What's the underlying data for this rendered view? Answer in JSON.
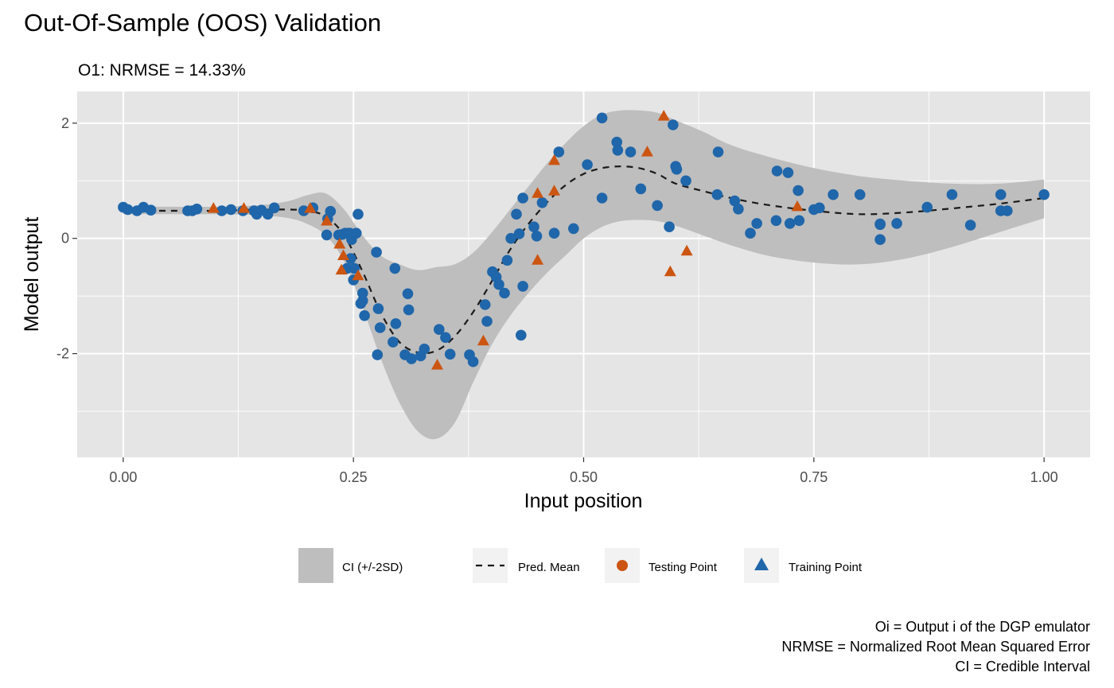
{
  "chart_data": {
    "type": "scatter",
    "title": "Out-Of-Sample (OOS) Validation",
    "subtitle": "O1: NRMSE = 14.33%",
    "xlabel": "Input position",
    "ylabel": "Model output",
    "xlim": [
      -0.05,
      1.05
    ],
    "ylim": [
      -3.8,
      2.55
    ],
    "x_ticks": [
      0,
      0.25,
      0.5,
      0.75,
      1
    ],
    "x_tick_labels": [
      "0.00",
      "0.25",
      "0.50",
      "0.75",
      "1.00"
    ],
    "y_ticks": [
      -2,
      0,
      2
    ],
    "y_tick_labels": [
      "-2",
      "0",
      "2"
    ],
    "grid": true,
    "legend_position": "bottom",
    "legend": {
      "ci": "CI (+/-2SD)",
      "mean": "Pred. Mean",
      "testing": "Testing Point",
      "training": "Training Point"
    },
    "caption": [
      "Oi = Output i of the DGP emulator",
      "NRMSE = Normalized Root Mean Squared Error",
      "CI = Credible Interval"
    ],
    "colors": {
      "panel": "#e5e5e5",
      "grid": "#ffffff",
      "ci_band": "#bebebe",
      "mean_line": "#1a1a1a",
      "testing": "#1f66aa",
      "training": "#cc5511",
      "legend_testing": "#cc5511",
      "legend_training": "#1f66aa",
      "legend_key_bg": "#f2f2f2"
    },
    "ci_band": {
      "x": [
        0,
        0.05,
        0.1,
        0.15,
        0.18,
        0.2,
        0.22,
        0.24,
        0.26,
        0.28,
        0.3,
        0.32,
        0.34,
        0.36,
        0.38,
        0.4,
        0.42,
        0.44,
        0.46,
        0.48,
        0.5,
        0.52,
        0.54,
        0.56,
        0.58,
        0.6,
        0.63,
        0.66,
        0.7,
        0.75,
        0.8,
        0.85,
        0.9,
        0.95,
        1
      ],
      "upper": [
        0.55,
        0.55,
        0.55,
        0.58,
        0.65,
        0.75,
        0.78,
        0.5,
        0.05,
        -0.3,
        -0.45,
        -0.55,
        -0.5,
        -0.45,
        -0.25,
        0.1,
        0.5,
        0.9,
        1.3,
        1.65,
        1.95,
        2.15,
        2.22,
        2.22,
        2.18,
        2.05,
        1.85,
        1.62,
        1.42,
        1.22,
        1.08,
        1.0,
        0.95,
        0.95,
        1.02
      ],
      "lower": [
        0.42,
        0.42,
        0.42,
        0.4,
        0.35,
        0.25,
        0.05,
        -0.4,
        -1.2,
        -2.1,
        -2.85,
        -3.35,
        -3.48,
        -3.2,
        -2.5,
        -1.85,
        -1.35,
        -0.95,
        -0.6,
        -0.3,
        0.0,
        0.2,
        0.3,
        0.32,
        0.3,
        0.22,
        0.05,
        -0.12,
        -0.3,
        -0.42,
        -0.45,
        -0.35,
        -0.15,
        0.1,
        0.35
      ]
    },
    "pred_mean": {
      "x": [
        0,
        0.05,
        0.1,
        0.15,
        0.18,
        0.2,
        0.22,
        0.24,
        0.26,
        0.28,
        0.3,
        0.32,
        0.34,
        0.36,
        0.38,
        0.4,
        0.42,
        0.44,
        0.46,
        0.48,
        0.5,
        0.52,
        0.54,
        0.56,
        0.58,
        0.6,
        0.63,
        0.66,
        0.7,
        0.75,
        0.8,
        0.85,
        0.9,
        0.95,
        1
      ],
      "y": [
        0.48,
        0.48,
        0.48,
        0.5,
        0.5,
        0.48,
        0.38,
        0.05,
        -0.58,
        -1.3,
        -1.8,
        -1.98,
        -1.95,
        -1.7,
        -1.28,
        -0.75,
        -0.2,
        0.25,
        0.62,
        0.92,
        1.12,
        1.22,
        1.25,
        1.22,
        1.12,
        0.95,
        0.82,
        0.7,
        0.58,
        0.48,
        0.42,
        0.45,
        0.52,
        0.6,
        0.7
      ]
    },
    "testing_points": {
      "x": [
        0,
        0.005,
        0.015,
        0.022,
        0.03,
        0.07,
        0.075,
        0.08,
        0.107,
        0.117,
        0.13,
        0.142,
        0.145,
        0.15,
        0.157,
        0.164,
        0.196,
        0.206,
        0.221,
        0.222,
        0.225,
        0.234,
        0.238,
        0.241,
        0.243,
        0.245,
        0.246,
        0.247,
        0.248,
        0.25,
        0.251,
        0.253,
        0.255,
        0.258,
        0.26,
        0.26,
        0.262,
        0.275,
        0.276,
        0.277,
        0.279,
        0.295,
        0.296,
        0.293,
        0.306,
        0.309,
        0.31,
        0.313,
        0.323,
        0.327,
        0.343,
        0.35,
        0.355,
        0.376,
        0.38,
        0.393,
        0.395,
        0.401,
        0.405,
        0.408,
        0.414,
        0.417,
        0.421,
        0.427,
        0.43,
        0.432,
        0.434,
        0.434,
        0.446,
        0.449,
        0.455,
        0.468,
        0.473,
        0.489,
        0.504,
        0.52,
        0.52,
        0.536,
        0.537,
        0.551,
        0.562,
        0.58,
        0.593,
        0.597,
        0.6,
        0.601,
        0.611,
        0.646,
        0.645,
        0.664,
        0.668,
        0.681,
        0.688,
        0.71,
        0.709,
        0.722,
        0.724,
        0.734,
        0.733,
        0.75,
        0.756,
        0.771,
        0.8,
        0.822,
        0.822,
        0.822,
        0.84,
        0.873,
        0.9,
        0.92,
        0.953,
        0.953,
        0.96,
        1.0
      ],
      "y": [
        0.54,
        0.5,
        0.48,
        0.54,
        0.49,
        0.48,
        0.48,
        0.51,
        0.48,
        0.5,
        0.48,
        0.48,
        0.42,
        0.49,
        0.42,
        0.53,
        0.48,
        0.53,
        0.06,
        0.34,
        0.47,
        0.06,
        0.07,
        0.09,
        -0.52,
        0.09,
        0.09,
        -0.35,
        -0.02,
        -0.72,
        -0.52,
        0.09,
        0.42,
        -1.13,
        -1.08,
        -0.95,
        -1.34,
        -0.24,
        -2.02,
        -1.22,
        -1.55,
        -0.52,
        -1.48,
        -1.8,
        -2.02,
        -0.96,
        -1.24,
        -2.09,
        -2.04,
        -1.92,
        -1.58,
        -1.72,
        -2.01,
        -2.02,
        -2.14,
        -1.15,
        -1.44,
        -0.58,
        -0.67,
        -0.8,
        -0.95,
        -0.38,
        0.0,
        0.42,
        0.08,
        -1.68,
        -0.83,
        0.7,
        0.2,
        0.04,
        0.62,
        0.09,
        1.5,
        0.17,
        1.28,
        2.09,
        0.7,
        1.67,
        1.53,
        1.5,
        0.86,
        0.57,
        0.2,
        1.97,
        1.25,
        1.2,
        1.0,
        1.5,
        0.76,
        0.65,
        0.51,
        0.09,
        0.26,
        1.17,
        0.31,
        1.14,
        0.26,
        0.31,
        0.83,
        0.5,
        0.53,
        0.76,
        0.76,
        0.24,
        -0.02,
        0.25,
        0.26,
        0.54,
        0.76,
        0.23,
        0.76,
        0.48,
        0.48,
        0.76
      ]
    },
    "training_points": {
      "x": [
        0.098,
        0.131,
        0.203,
        0.221,
        0.235,
        0.237,
        0.239,
        0.255,
        0.341,
        0.391,
        0.45,
        0.45,
        0.468,
        0.468,
        0.569,
        0.587,
        0.594,
        0.612,
        0.732
      ],
      "y": [
        0.52,
        0.52,
        0.52,
        0.3,
        -0.1,
        -0.55,
        -0.3,
        -0.65,
        -2.2,
        -1.78,
        0.78,
        -0.38,
        1.35,
        0.82,
        1.5,
        2.12,
        -0.58,
        -0.22,
        0.55
      ]
    }
  }
}
